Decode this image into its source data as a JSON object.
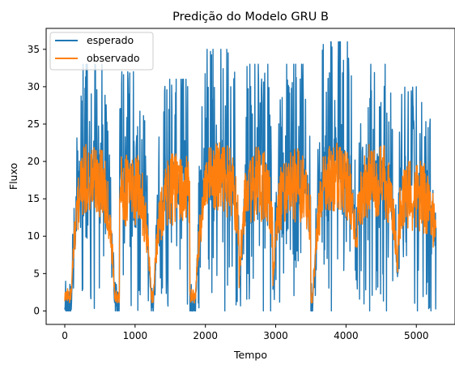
{
  "chart_data": {
    "type": "line",
    "title": "Predição do Modelo GRU B",
    "xlabel": "Tempo",
    "ylabel": "Fluxo",
    "xlim": [
      -265,
      5550
    ],
    "ylim": [
      -1.8,
      37.8
    ],
    "xticks": [
      0,
      1000,
      2000,
      3000,
      4000,
      5000
    ],
    "yticks": [
      0,
      5,
      10,
      15,
      20,
      25,
      30,
      35
    ],
    "grid": false,
    "legend_position": "top-left",
    "series": [
      {
        "name": "esperado",
        "color": "#1f77b4",
        "description_points": "daily cycles",
        "cycles": [
          {
            "start": 0,
            "peak_center": 400,
            "peak_width": 300,
            "max": 33,
            "end": 780
          },
          {
            "start": 780,
            "peak_center": 920,
            "peak_width": 300,
            "max": 32,
            "end": 1230
          },
          {
            "start": 1230,
            "peak_center": 1600,
            "peak_width": 330,
            "max": 31,
            "end": 1780
          },
          {
            "start": 1780,
            "peak_center": 2200,
            "peak_width": 330,
            "max": 35,
            "end": 2480
          },
          {
            "start": 2480,
            "peak_center": 2740,
            "peak_width": 260,
            "max": 33,
            "end": 2960
          },
          {
            "start": 2960,
            "peak_center": 3260,
            "peak_width": 300,
            "max": 33,
            "end": 3500
          },
          {
            "start": 3500,
            "peak_center": 3860,
            "peak_width": 320,
            "max": 36,
            "end": 4160
          },
          {
            "start": 4160,
            "peak_center": 4420,
            "peak_width": 320,
            "max": 33,
            "end": 4740
          },
          {
            "start": 4740,
            "peak_center": 5000,
            "peak_width": 330,
            "max": 30,
            "end": 5280
          }
        ]
      },
      {
        "name": "observado",
        "color": "#ff7f0e",
        "cycles": [
          {
            "start": 0,
            "peak_center": 400,
            "peak_width": 300,
            "max": 23,
            "end": 780
          },
          {
            "start": 780,
            "peak_center": 920,
            "peak_width": 300,
            "max": 21,
            "end": 1230
          },
          {
            "start": 1230,
            "peak_center": 1600,
            "peak_width": 330,
            "max": 21,
            "end": 1780
          },
          {
            "start": 1780,
            "peak_center": 2200,
            "peak_width": 330,
            "max": 23,
            "end": 2480
          },
          {
            "start": 2480,
            "peak_center": 2740,
            "peak_width": 260,
            "max": 22,
            "end": 2960
          },
          {
            "start": 2960,
            "peak_center": 3260,
            "peak_width": 300,
            "max": 22,
            "end": 3500
          },
          {
            "start": 3500,
            "peak_center": 3860,
            "peak_width": 320,
            "max": 23,
            "end": 4160
          },
          {
            "start": 4160,
            "peak_center": 4420,
            "peak_width": 320,
            "max": 23,
            "end": 4740
          },
          {
            "start": 4740,
            "peak_center": 5000,
            "peak_width": 330,
            "max": 20,
            "end": 5280
          }
        ]
      }
    ]
  }
}
